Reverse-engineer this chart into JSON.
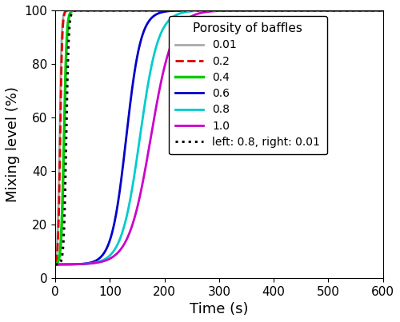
{
  "title": "",
  "xlabel": "Time (s)",
  "ylabel": "Mixing level (%)",
  "xlim": [
    0,
    600
  ],
  "ylim": [
    0,
    100
  ],
  "xticks": [
    0,
    100,
    200,
    300,
    400,
    500,
    600
  ],
  "yticks": [
    0,
    20,
    40,
    60,
    80,
    100
  ],
  "legend_title": "Porosity of baffles",
  "series": [
    {
      "label": "0.01",
      "color": "#aaaaaa",
      "linestyle": "-",
      "linewidth": 2.0,
      "k": 0.55,
      "t0": 8
    },
    {
      "label": "0.2",
      "color": "#dd0000",
      "linestyle": "--",
      "linewidth": 2.0,
      "k": 0.55,
      "t0": 9
    },
    {
      "label": "0.4",
      "color": "#00cc00",
      "linestyle": "-",
      "linewidth": 2.5,
      "k": 0.4,
      "t0": 16
    },
    {
      "label": "0.6",
      "color": "#0000cc",
      "linestyle": "-",
      "linewidth": 2.0,
      "k": 0.075,
      "t0": 130
    },
    {
      "label": "0.8",
      "color": "#00cccc",
      "linestyle": "-",
      "linewidth": 2.0,
      "k": 0.06,
      "t0": 155
    },
    {
      "label": "1.0",
      "color": "#cc00cc",
      "linestyle": "-",
      "linewidth": 2.0,
      "k": 0.05,
      "t0": 175
    },
    {
      "label": "left: 0.8, right: 0.01",
      "color": "#000000",
      "linestyle": ":",
      "linewidth": 2.2,
      "k": 0.45,
      "t0": 20
    }
  ],
  "y_start": 5.0,
  "figsize": [
    5.0,
    4.03
  ],
  "dpi": 100
}
